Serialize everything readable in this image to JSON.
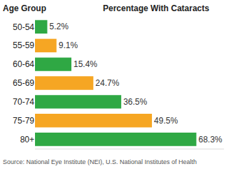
{
  "chart_data": {
    "type": "bar",
    "orientation": "horizontal",
    "ylabel": "Age Group",
    "xlabel": "Percentage With Cataracts",
    "annotations": [
      "Source: National Eye Institute (NEI), U.S. National Institutes of Health"
    ],
    "categories": [
      "50-54",
      "55-59",
      "60-64",
      "65-69",
      "70-74",
      "75-79",
      "80+"
    ],
    "values": [
      5.2,
      9.1,
      15.4,
      24.7,
      36.5,
      49.5,
      68.3
    ],
    "value_labels": [
      "5.2%",
      "9.1%",
      "15.4%",
      "24.7%",
      "36.5%",
      "49.5%",
      "68.3%"
    ],
    "colors": [
      "#2fa844",
      "#f6a623",
      "#2fa844",
      "#f6a623",
      "#2fa844",
      "#f6a623",
      "#2fa844"
    ],
    "xlim": [
      0,
      80
    ],
    "xticks": [],
    "tick_labels": "y",
    "data_labels": true,
    "grid": false
  }
}
